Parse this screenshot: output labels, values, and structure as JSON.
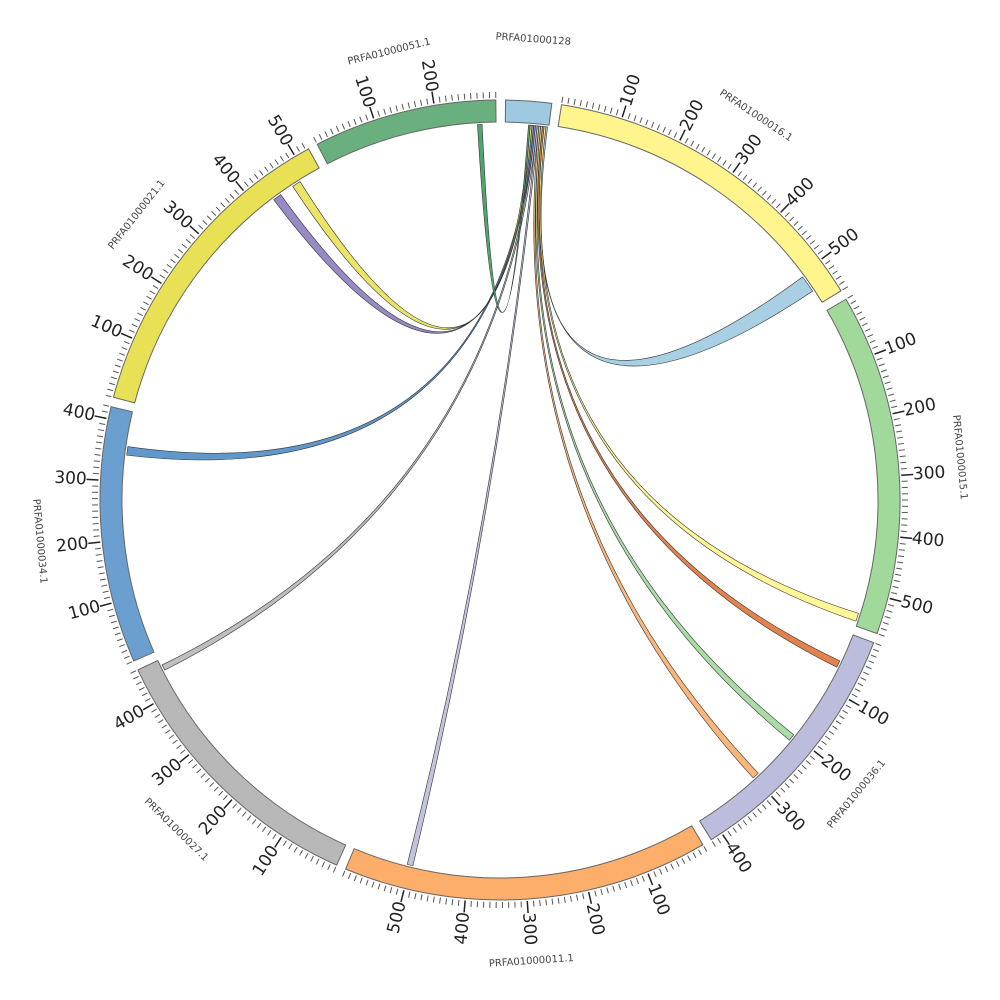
{
  "segments": [
    {
      "name": "PRFA01000128",
      "length": 75,
      "color": "#9ecae1",
      "ticks": []
    },
    {
      "name": "PRFA01000016.1",
      "length": 560,
      "color": "#fff58c",
      "ticks": [
        100,
        200,
        300,
        400,
        500
      ]
    },
    {
      "name": "PRFA01000015.1",
      "length": 560,
      "color": "#a1d99b",
      "ticks": [
        100,
        200,
        300,
        400,
        500
      ]
    },
    {
      "name": "PRFA01000036.1",
      "length": 420,
      "color": "#bcbddc",
      "ticks": [
        100,
        200,
        300,
        400
      ]
    },
    {
      "name": "PRFA01000011.1",
      "length": 600,
      "color": "#fdae6b",
      "ticks": [
        100,
        200,
        300,
        400,
        500
      ]
    },
    {
      "name": "PRFA01000027.1",
      "length": 460,
      "color": "#b8b8b8",
      "ticks": [
        100,
        200,
        300,
        400
      ]
    },
    {
      "name": "PRFA01000034.1",
      "length": 420,
      "color": "#6a9fcf",
      "ticks": [
        100,
        200,
        300,
        400
      ]
    },
    {
      "name": "PRFA01000021.1",
      "length": 525,
      "color": "#e9e155",
      "ticks": [
        100,
        200,
        300,
        400,
        500
      ]
    },
    {
      "name": "PRFA01000051.1",
      "length": 300,
      "color": "#6aaf7e",
      "ticks": [
        100,
        200
      ]
    }
  ],
  "minor_tick_step": 10,
  "links": [
    {
      "source": "PRFA01000128",
      "source_range": [
        70,
        73
      ],
      "target": "PRFA01000016.1",
      "target_range": [
        505,
        535
      ],
      "color": "#9ecae1"
    },
    {
      "source": "PRFA01000128",
      "source_range": [
        67,
        70
      ],
      "target": "PRFA01000015.1",
      "target_range": [
        538,
        552
      ],
      "color": "#fff58c"
    },
    {
      "source": "PRFA01000128",
      "source_range": [
        64,
        67
      ],
      "target": "PRFA01000036.1",
      "target_range": [
        50,
        62
      ],
      "color": "#e0743a"
    },
    {
      "source": "PRFA01000128",
      "source_range": [
        61,
        64
      ],
      "target": "PRFA01000036.1",
      "target_range": [
        200,
        212
      ],
      "color": "#a1d99b"
    },
    {
      "source": "PRFA01000128",
      "source_range": [
        58,
        61
      ],
      "target": "PRFA01000036.1",
      "target_range": [
        290,
        302
      ],
      "color": "#fdae6b"
    },
    {
      "source": "PRFA01000128",
      "source_range": [
        55,
        58
      ],
      "target": "PRFA01000011.1",
      "target_range": [
        495,
        505
      ],
      "color": "#bcbddc"
    },
    {
      "source": "PRFA01000128",
      "source_range": [
        52,
        55
      ],
      "target": "PRFA01000027.1",
      "target_range": [
        440,
        450
      ],
      "color": "#b8b8b8"
    },
    {
      "source": "PRFA01000128",
      "source_range": [
        49,
        52
      ],
      "target": "PRFA01000034.1",
      "target_range": [
        345,
        360
      ],
      "color": "#4f8dc6"
    },
    {
      "source": "PRFA01000128",
      "source_range": [
        46,
        49
      ],
      "target": "PRFA01000021.1",
      "target_range": [
        430,
        445
      ],
      "color": "#8c7dbf"
    },
    {
      "source": "PRFA01000128",
      "source_range": [
        43,
        46
      ],
      "target": "PRFA01000021.1",
      "target_range": [
        470,
        485
      ],
      "color": "#e9e155"
    },
    {
      "source": "PRFA01000128",
      "source_range": [
        40,
        43
      ],
      "target": "PRFA01000051.1",
      "target_range": [
        268,
        276
      ],
      "color": "#3d9a5e"
    }
  ]
}
